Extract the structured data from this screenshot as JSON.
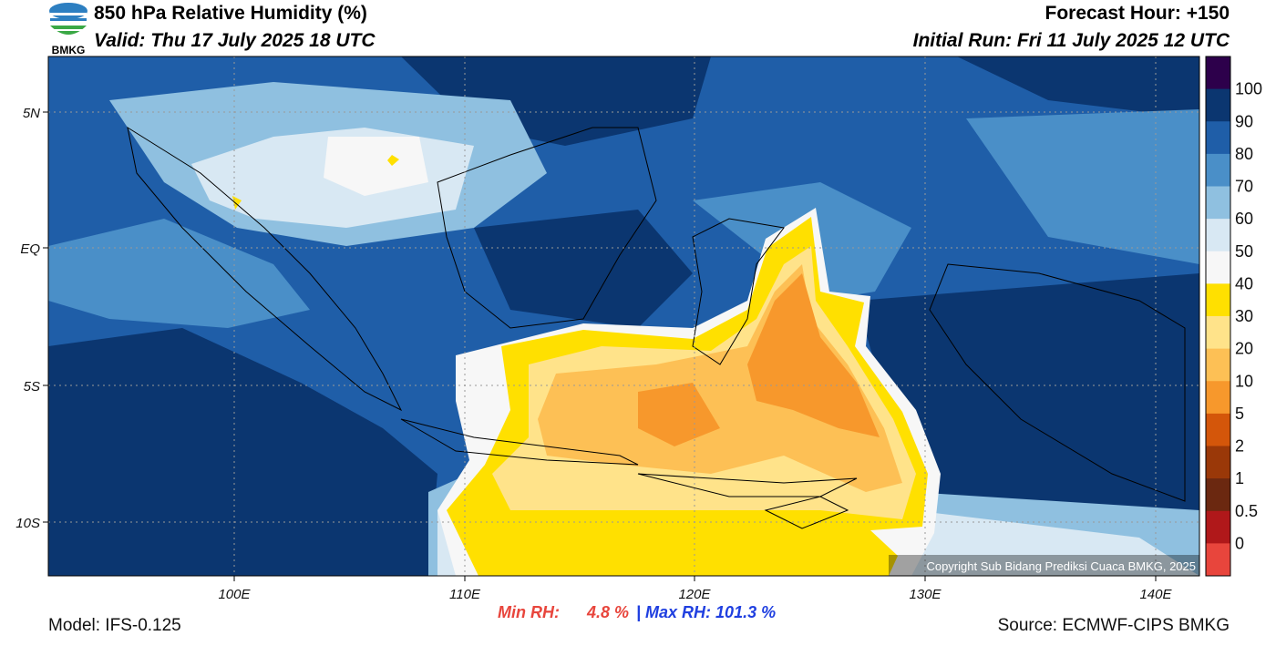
{
  "header": {
    "title": "850 hPa Relative Humidity (%)",
    "valid": "Valid: Thu 17 July 2025 18 UTC",
    "forecast_hour": "Forecast Hour: +150",
    "initial_run": "Initial Run: Fri 11 July 2025 12 UTC",
    "logo": "BMKG"
  },
  "map": {
    "lat_labels": [
      "5N",
      "EQ",
      "5S",
      "10S"
    ],
    "lon_labels": [
      "100E",
      "110E",
      "120E",
      "130E",
      "140E"
    ],
    "copyright": "Copyright Sub Bidang Prediksi Cuaca BMKG, 2025"
  },
  "colorbar": {
    "labels": [
      "100",
      "90",
      "80",
      "70",
      "60",
      "50",
      "40",
      "30",
      "20",
      "10",
      "5",
      "2",
      "1",
      "0.5",
      "0"
    ],
    "colors": [
      "#2d004b",
      "#0b3670",
      "#1f5ea8",
      "#4a8fc8",
      "#8fc0e0",
      "#d8e8f3",
      "#f7f7f7",
      "#ffe000",
      "#ffe38a",
      "#fdc055",
      "#f7982c",
      "#d4560a",
      "#9a3808",
      "#6b2810",
      "#b0181a",
      "#e8453c"
    ]
  },
  "footer": {
    "model": "Model: IFS-0.125",
    "min_label": "Min RH:",
    "min_value": "4.8 %",
    "max": "| Max RH: 101.3 %",
    "source": "Source: ECMWF-CIPS BMKG"
  }
}
